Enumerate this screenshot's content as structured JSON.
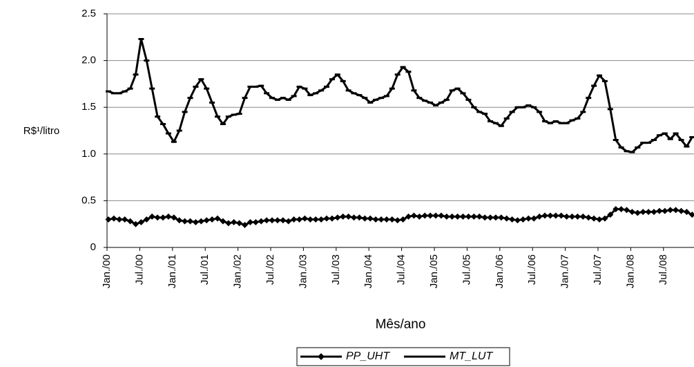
{
  "chart_data": {
    "type": "line",
    "y_label": "R$¹/litro",
    "x_label": "Mês/ano",
    "categories": [
      "Jan./00",
      null,
      null,
      null,
      null,
      null,
      "Jul./00",
      null,
      null,
      null,
      null,
      null,
      "Jan./01",
      null,
      null,
      null,
      null,
      null,
      "Jul./01",
      null,
      null,
      null,
      null,
      null,
      "Jan./02",
      null,
      null,
      null,
      null,
      null,
      "Jul./02",
      null,
      null,
      null,
      null,
      null,
      "Jan./03",
      null,
      null,
      null,
      null,
      null,
      "Jul./03",
      null,
      null,
      null,
      null,
      null,
      "Jan./04",
      null,
      null,
      null,
      null,
      null,
      "Jul./04",
      null,
      null,
      null,
      null,
      null,
      "Jan./05",
      null,
      null,
      null,
      null,
      null,
      "Jul./05",
      null,
      null,
      null,
      null,
      null,
      "Jan./06",
      null,
      null,
      null,
      null,
      null,
      "Jul./06",
      null,
      null,
      null,
      null,
      null,
      "Jan./07",
      null,
      null,
      null,
      null,
      null,
      "Jul./07",
      null,
      null,
      null,
      null,
      null,
      "Jan./08",
      null,
      null,
      null,
      null,
      null,
      "Jul./08",
      null,
      null,
      null,
      null,
      null
    ],
    "series": [
      {
        "name": "PP_UHT",
        "color": "#000000",
        "marker": "diamond",
        "values": [
          0.3,
          0.31,
          0.3,
          0.3,
          0.28,
          0.25,
          0.27,
          0.3,
          0.33,
          0.32,
          0.32,
          0.33,
          0.32,
          0.29,
          0.28,
          0.28,
          0.27,
          0.28,
          0.29,
          0.3,
          0.31,
          0.28,
          0.26,
          0.27,
          0.26,
          0.24,
          0.27,
          0.27,
          0.28,
          0.29,
          0.29,
          0.29,
          0.29,
          0.28,
          0.3,
          0.3,
          0.31,
          0.3,
          0.3,
          0.3,
          0.31,
          0.31,
          0.32,
          0.33,
          0.33,
          0.32,
          0.32,
          0.31,
          0.31,
          0.3,
          0.3,
          0.3,
          0.3,
          0.29,
          0.3,
          0.33,
          0.34,
          0.33,
          0.34,
          0.34,
          0.34,
          0.34,
          0.33,
          0.33,
          0.33,
          0.33,
          0.33,
          0.33,
          0.33,
          0.32,
          0.32,
          0.32,
          0.32,
          0.31,
          0.3,
          0.29,
          0.3,
          0.31,
          0.31,
          0.33,
          0.34,
          0.34,
          0.34,
          0.34,
          0.33,
          0.33,
          0.33,
          0.33,
          0.32,
          0.31,
          0.3,
          0.31,
          0.35,
          0.41,
          0.41,
          0.4,
          0.38,
          0.37,
          0.38,
          0.38,
          0.38,
          0.39,
          0.39,
          0.4,
          0.4,
          0.39,
          0.38,
          0.35
        ]
      },
      {
        "name": "MT_LUT",
        "color": "#000000",
        "marker": "dash",
        "values": [
          1.67,
          1.65,
          1.65,
          1.67,
          1.7,
          1.85,
          2.23,
          2.0,
          1.7,
          1.4,
          1.32,
          1.22,
          1.13,
          1.25,
          1.45,
          1.6,
          1.72,
          1.8,
          1.7,
          1.55,
          1.4,
          1.32,
          1.4,
          1.42,
          1.43,
          1.6,
          1.72,
          1.72,
          1.73,
          1.65,
          1.6,
          1.58,
          1.6,
          1.58,
          1.62,
          1.72,
          1.7,
          1.63,
          1.65,
          1.68,
          1.72,
          1.8,
          1.85,
          1.78,
          1.68,
          1.65,
          1.63,
          1.6,
          1.55,
          1.58,
          1.6,
          1.62,
          1.7,
          1.85,
          1.93,
          1.88,
          1.68,
          1.6,
          1.57,
          1.55,
          1.52,
          1.55,
          1.58,
          1.68,
          1.7,
          1.65,
          1.58,
          1.5,
          1.45,
          1.43,
          1.35,
          1.33,
          1.3,
          1.38,
          1.45,
          1.5,
          1.5,
          1.52,
          1.5,
          1.45,
          1.35,
          1.33,
          1.35,
          1.33,
          1.33,
          1.36,
          1.38,
          1.45,
          1.6,
          1.73,
          1.84,
          1.78,
          1.48,
          1.15,
          1.07,
          1.03,
          1.02,
          1.07,
          1.12,
          1.12,
          1.15,
          1.2,
          1.22,
          1.16,
          1.22,
          1.15,
          1.08,
          1.18
        ]
      }
    ],
    "ylim": [
      0,
      2.5
    ],
    "yticks": [
      0,
      0.5,
      {
        "value": 1,
        "label": "1.0"
      },
      1.5,
      {
        "value": 2,
        "label": "2.0"
      },
      2.5
    ],
    "grid": true
  }
}
